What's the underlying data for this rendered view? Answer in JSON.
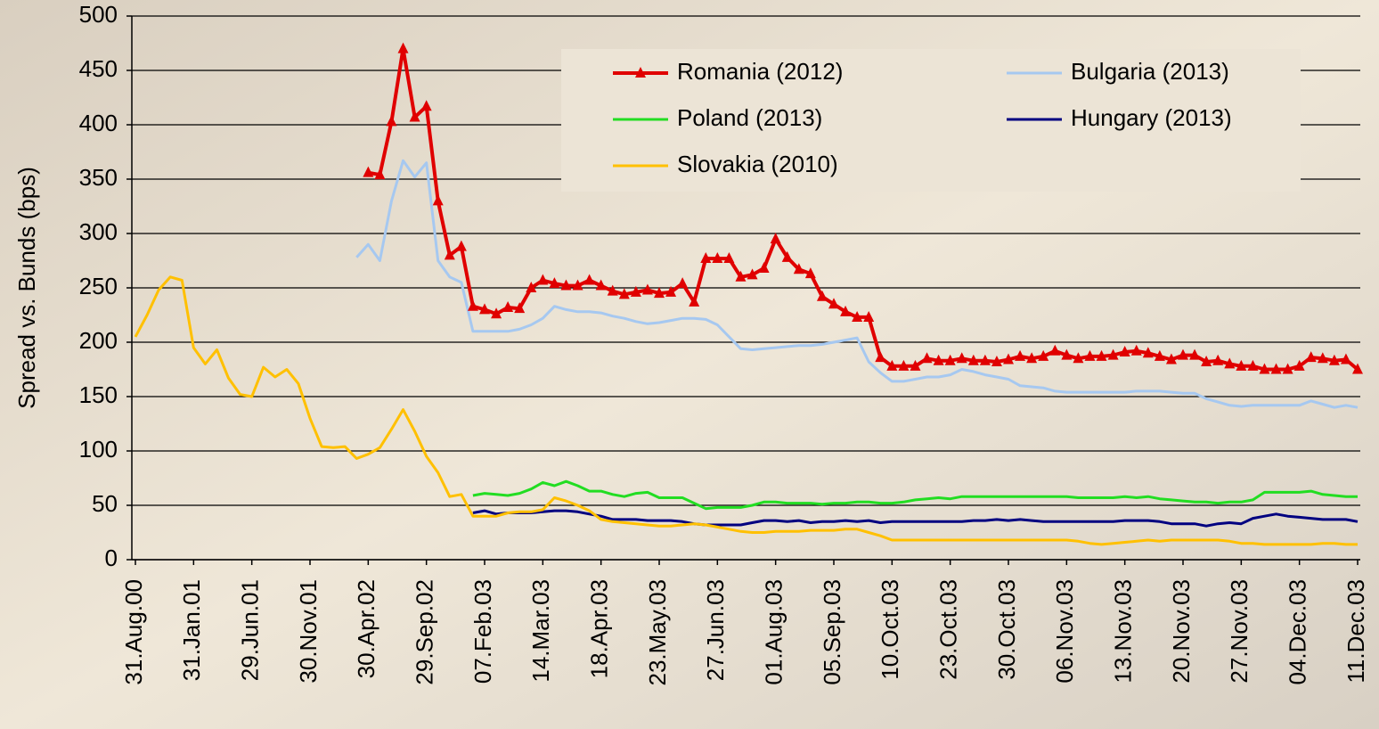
{
  "chart_data": {
    "type": "line",
    "y_label": "Spread vs. Bunds (bps)",
    "categories": [
      "31.Aug.00",
      null,
      null,
      null,
      null,
      "31.Jan.01",
      null,
      null,
      null,
      null,
      "29.Jun.01",
      null,
      null,
      null,
      null,
      "30.Nov.01",
      null,
      null,
      null,
      null,
      "30.Apr.02",
      null,
      null,
      null,
      null,
      "29.Sep.02",
      null,
      null,
      null,
      null,
      "07.Feb.03",
      null,
      null,
      null,
      null,
      "14.Mar.03",
      null,
      null,
      null,
      null,
      "18.Apr.03",
      null,
      null,
      null,
      null,
      "23.May.03",
      null,
      null,
      null,
      null,
      "27.Jun.03",
      null,
      null,
      null,
      null,
      "01.Aug.03",
      null,
      null,
      null,
      null,
      "05.Sep.03",
      null,
      null,
      null,
      null,
      "10.Oct.03",
      null,
      null,
      null,
      null,
      "23.Oct.03",
      null,
      null,
      null,
      null,
      "30.Oct.03",
      null,
      null,
      null,
      null,
      "06.Nov.03",
      null,
      null,
      null,
      null,
      "13.Nov.03",
      null,
      null,
      null,
      null,
      "20.Nov.03",
      null,
      null,
      null,
      null,
      "27.Nov.03",
      null,
      null,
      null,
      null,
      "04.Dec.03",
      null,
      null,
      null,
      null,
      "11.Dec.03"
    ],
    "series": [
      {
        "name": "Romania (2012)",
        "color": "#e00000",
        "marker": "triangle",
        "values": [
          null,
          null,
          null,
          null,
          null,
          null,
          null,
          null,
          null,
          null,
          null,
          null,
          null,
          null,
          null,
          null,
          null,
          null,
          null,
          null,
          356,
          354,
          403,
          470,
          407,
          417,
          330,
          280,
          288,
          233,
          230,
          226,
          232,
          231,
          250,
          257,
          254,
          252,
          252,
          257,
          252,
          247,
          244,
          246,
          248,
          245,
          246,
          254,
          237,
          277,
          277,
          277,
          260,
          262,
          268,
          295,
          278,
          267,
          263,
          242,
          235,
          228,
          223,
          223,
          186,
          178,
          178,
          178,
          185,
          183,
          183,
          185,
          183,
          183,
          182,
          184,
          187,
          185,
          187,
          192,
          188,
          185,
          187,
          187,
          188,
          191,
          192,
          190,
          187,
          184,
          188,
          188,
          182,
          183,
          180,
          178,
          178,
          175,
          175,
          175,
          178,
          186,
          185,
          183,
          184,
          175
        ]
      },
      {
        "name": "Bulgaria (2013)",
        "color": "#a6c8f0",
        "values": [
          null,
          null,
          null,
          null,
          null,
          null,
          null,
          null,
          null,
          null,
          null,
          null,
          null,
          null,
          null,
          null,
          null,
          null,
          null,
          278,
          290,
          275,
          330,
          367,
          352,
          365,
          275,
          260,
          255,
          210,
          210,
          210,
          210,
          212,
          216,
          222,
          233,
          230,
          228,
          228,
          227,
          224,
          222,
          219,
          217,
          218,
          220,
          222,
          222,
          221,
          216,
          205,
          194,
          193,
          194,
          195,
          196,
          197,
          197,
          198,
          200,
          202,
          204,
          182,
          172,
          164,
          164,
          166,
          168,
          168,
          170,
          175,
          173,
          170,
          168,
          166,
          160,
          159,
          158,
          155,
          154,
          154,
          154,
          154,
          154,
          154,
          155,
          155,
          155,
          154,
          153,
          153,
          148,
          145,
          142,
          141,
          142,
          142,
          142,
          142,
          142,
          146,
          143,
          140,
          142,
          140
        ]
      },
      {
        "name": "Poland (2013)",
        "color": "#22dd22",
        "values": [
          null,
          null,
          null,
          null,
          null,
          null,
          null,
          null,
          null,
          null,
          null,
          null,
          null,
          null,
          null,
          null,
          null,
          null,
          null,
          null,
          null,
          null,
          null,
          null,
          null,
          null,
          null,
          null,
          null,
          59,
          61,
          60,
          59,
          61,
          65,
          71,
          68,
          72,
          68,
          63,
          63,
          60,
          58,
          61,
          62,
          57,
          57,
          57,
          52,
          47,
          48,
          48,
          48,
          50,
          53,
          53,
          52,
          52,
          52,
          51,
          52,
          52,
          53,
          53,
          52,
          52,
          53,
          55,
          56,
          57,
          56,
          58,
          58,
          58,
          58,
          58,
          58,
          58,
          58,
          58,
          58,
          57,
          57,
          57,
          57,
          58,
          57,
          58,
          56,
          55,
          54,
          53,
          53,
          52,
          53,
          53,
          55,
          62,
          62,
          62,
          62,
          63,
          60,
          59,
          58,
          58
        ]
      },
      {
        "name": "Hungary (2013)",
        "color": "#000080",
        "values": [
          null,
          null,
          null,
          null,
          null,
          null,
          null,
          null,
          null,
          null,
          null,
          null,
          null,
          null,
          null,
          null,
          null,
          null,
          null,
          null,
          null,
          null,
          null,
          null,
          null,
          null,
          null,
          null,
          null,
          43,
          45,
          42,
          43,
          43,
          43,
          44,
          45,
          45,
          44,
          42,
          40,
          37,
          37,
          37,
          36,
          36,
          36,
          35,
          33,
          32,
          32,
          32,
          32,
          34,
          36,
          36,
          35,
          36,
          34,
          35,
          35,
          36,
          35,
          36,
          34,
          35,
          35,
          35,
          35,
          35,
          35,
          35,
          36,
          36,
          37,
          36,
          37,
          36,
          35,
          35,
          35,
          35,
          35,
          35,
          35,
          36,
          36,
          36,
          35,
          33,
          33,
          33,
          31,
          33,
          34,
          33,
          38,
          40,
          42,
          40,
          39,
          38,
          37,
          37,
          37,
          35
        ]
      },
      {
        "name": "Slovakia (2010)",
        "color": "#ffc000",
        "values": [
          205,
          225,
          248,
          260,
          257,
          195,
          180,
          193,
          167,
          152,
          150,
          177,
          168,
          175,
          162,
          130,
          104,
          103,
          104,
          93,
          97,
          103,
          120,
          138,
          118,
          95,
          80,
          58,
          60,
          40,
          40,
          40,
          43,
          44,
          44,
          46,
          57,
          54,
          50,
          45,
          37,
          35,
          34,
          33,
          32,
          31,
          31,
          32,
          33,
          32,
          30,
          28,
          26,
          25,
          25,
          26,
          26,
          26,
          27,
          27,
          27,
          28,
          28,
          25,
          22,
          18,
          18,
          18,
          18,
          18,
          18,
          18,
          18,
          18,
          18,
          18,
          18,
          18,
          18,
          18,
          18,
          17,
          15,
          14,
          15,
          16,
          17,
          18,
          17,
          18,
          18,
          18,
          18,
          18,
          17,
          15,
          15,
          14,
          14,
          14,
          14,
          14,
          15,
          15,
          14,
          14
        ]
      }
    ],
    "ylim": [
      0,
      500
    ],
    "yticks": [
      0,
      50,
      100,
      150,
      200,
      250,
      300,
      350,
      400,
      450,
      500
    ],
    "grid": true
  }
}
